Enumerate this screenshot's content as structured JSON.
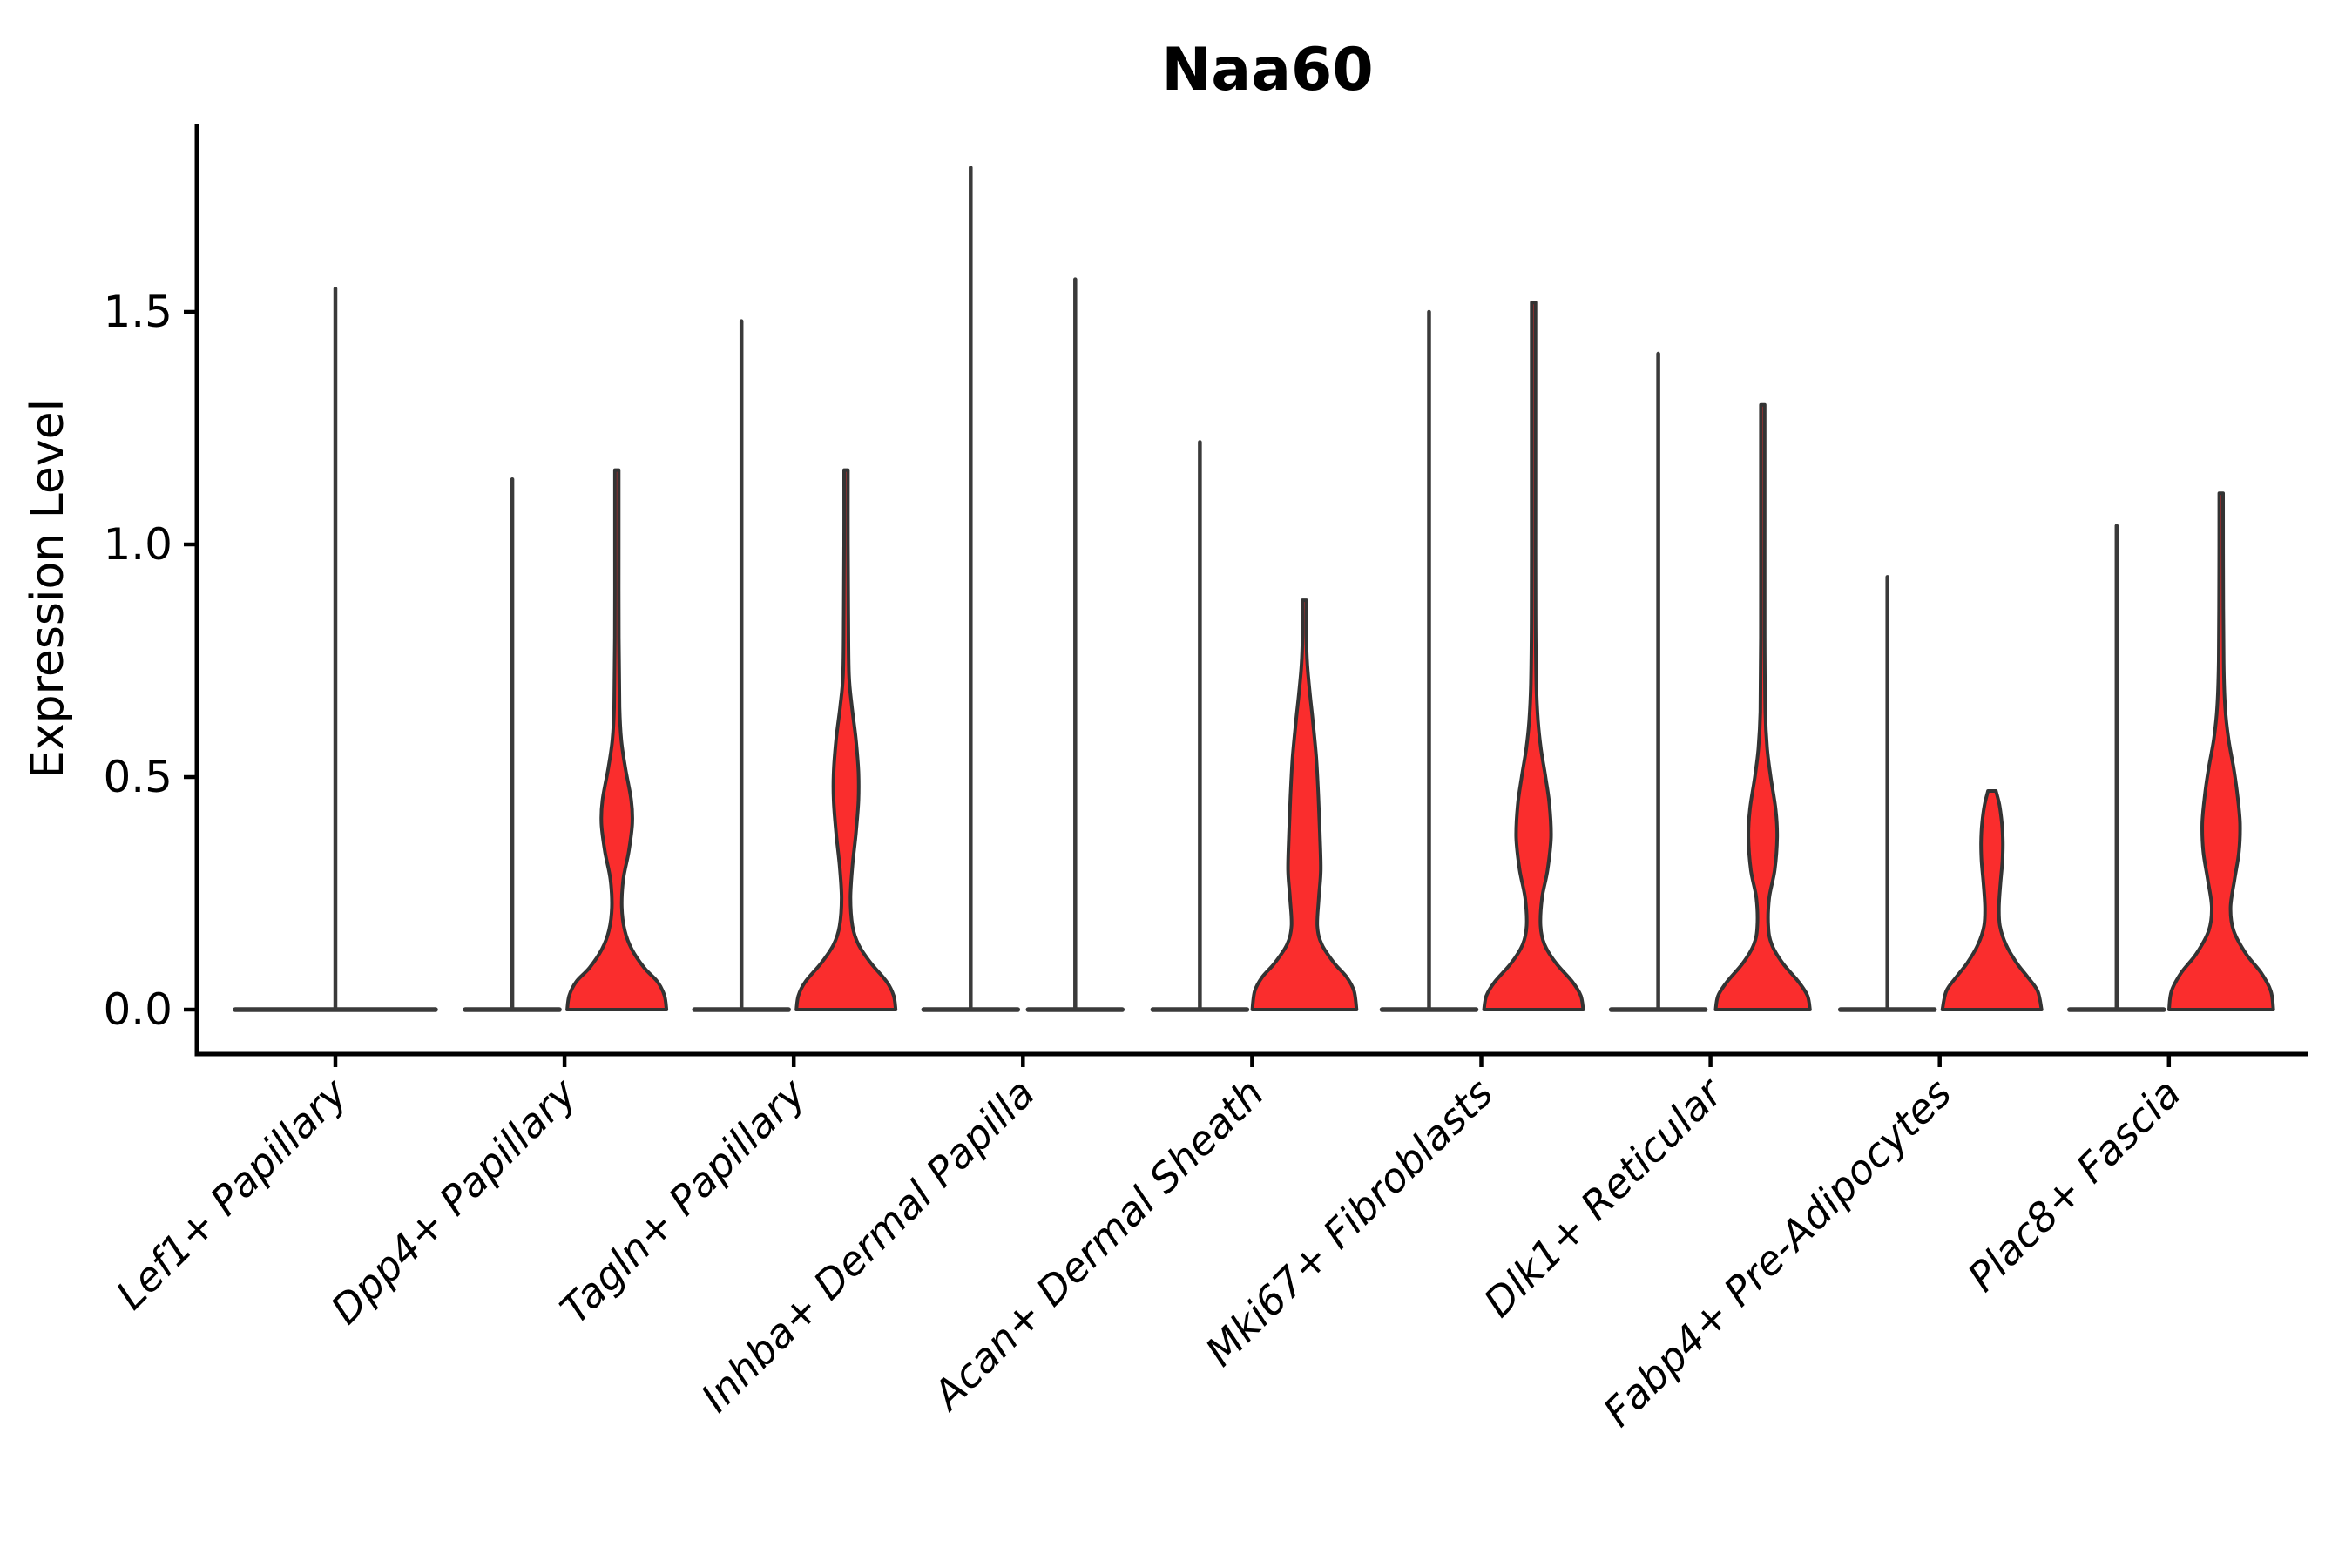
{
  "title": "Naa60",
  "axes": {
    "ylabel": "Expression Level",
    "ytick_labels": [
      "0.0",
      "0.5",
      "1.0",
      "1.5"
    ],
    "yticks": [
      0.0,
      0.5,
      1.0,
      1.5
    ],
    "ylim": [
      -0.09,
      1.9
    ],
    "grid": false,
    "legend": "none"
  },
  "colors": {
    "violin_fill": "#FA2D2D",
    "violin_outline": "#333333",
    "spike_line": "#3A3A3A",
    "axis": "#000000",
    "text": "#000000",
    "background": "#FFFFFF"
  },
  "chart_data": {
    "type": "violin",
    "title": "Naa60",
    "xlabel": "",
    "ylabel": "Expression Level",
    "categories": [
      "Lef1+ Papillary",
      "Dpp4+ Papillary",
      "Tagln+ Papillary",
      "Inhba+ Dermal Papilla",
      "Acan+ Dermal Sheath",
      "Mki67+ Fibroblasts",
      "Dlk1+ Reticular",
      "Fabp4+ Pre-Adipocytes",
      "Plac8+ Fascia"
    ],
    "series": [
      {
        "name": "violin-group-1",
        "style": "spike-line",
        "max_expression": [
          1.55,
          1.14,
          1.48,
          1.81,
          1.22,
          1.5,
          1.41,
          0.93,
          1.04
        ]
      },
      {
        "name": "violin-group-2",
        "style": "filled-red",
        "max_expression": [
          null,
          1.16,
          1.16,
          1.57,
          0.88,
          1.52,
          1.3,
          0.47,
          1.11
        ]
      }
    ],
    "violins": [
      {
        "category": "Lef1+ Papillary",
        "group": 1,
        "style": "line",
        "width": "full",
        "max": 1.55
      },
      {
        "category": "Dpp4+ Papillary",
        "group": 1,
        "style": "line",
        "max": 1.14
      },
      {
        "category": "Dpp4+ Papillary",
        "group": 2,
        "style": "filled",
        "max": 1.16,
        "profile": [
          [
            0,
            1.0
          ],
          [
            0.03,
            0.96
          ],
          [
            0.06,
            0.82
          ],
          [
            0.09,
            0.55
          ],
          [
            0.13,
            0.3
          ],
          [
            0.17,
            0.16
          ],
          [
            0.22,
            0.1
          ],
          [
            0.28,
            0.13
          ],
          [
            0.34,
            0.24
          ],
          [
            0.4,
            0.31
          ],
          [
            0.45,
            0.29
          ],
          [
            0.52,
            0.17
          ],
          [
            0.58,
            0.09
          ],
          [
            0.65,
            0.055
          ],
          [
            0.8,
            0.04
          ],
          [
            1.0,
            0.035
          ],
          [
            1.16,
            0.03
          ]
        ]
      },
      {
        "category": "Tagln+ Papillary",
        "group": 1,
        "style": "line",
        "max": 1.48
      },
      {
        "category": "Tagln+ Papillary",
        "group": 2,
        "style": "filled",
        "max": 1.16,
        "profile": [
          [
            0,
            1.0
          ],
          [
            0.03,
            0.96
          ],
          [
            0.06,
            0.82
          ],
          [
            0.1,
            0.5
          ],
          [
            0.14,
            0.25
          ],
          [
            0.18,
            0.13
          ],
          [
            0.24,
            0.09
          ],
          [
            0.31,
            0.13
          ],
          [
            0.38,
            0.2
          ],
          [
            0.45,
            0.25
          ],
          [
            0.51,
            0.25
          ],
          [
            0.58,
            0.2
          ],
          [
            0.65,
            0.12
          ],
          [
            0.72,
            0.06
          ],
          [
            0.85,
            0.045
          ],
          [
            1.0,
            0.038
          ],
          [
            1.16,
            0.03
          ]
        ]
      },
      {
        "category": "Inhba+ Dermal Papilla",
        "group": 1,
        "style": "line",
        "max": 1.81
      },
      {
        "category": "Inhba+ Dermal Papilla",
        "group": 2,
        "style": "line",
        "max": 1.57
      },
      {
        "category": "Acan+ Dermal Sheath",
        "group": 1,
        "style": "line",
        "max": 1.22
      },
      {
        "category": "Acan+ Dermal Sheath",
        "group": 2,
        "style": "filled",
        "max": 0.88,
        "profile": [
          [
            0,
            1.05
          ],
          [
            0.04,
            1.0
          ],
          [
            0.07,
            0.85
          ],
          [
            0.1,
            0.6
          ],
          [
            0.14,
            0.35
          ],
          [
            0.18,
            0.26
          ],
          [
            0.24,
            0.29
          ],
          [
            0.3,
            0.33
          ],
          [
            0.38,
            0.31
          ],
          [
            0.46,
            0.28
          ],
          [
            0.54,
            0.24
          ],
          [
            0.62,
            0.17
          ],
          [
            0.68,
            0.11
          ],
          [
            0.74,
            0.06
          ],
          [
            0.8,
            0.035
          ],
          [
            0.88,
            0.028
          ]
        ]
      },
      {
        "category": "Mki67+ Fibroblasts",
        "group": 1,
        "style": "line",
        "max": 1.5
      },
      {
        "category": "Mki67+ Fibroblasts",
        "group": 2,
        "style": "filled",
        "max": 1.52,
        "profile": [
          [
            0,
            1.0
          ],
          [
            0.03,
            0.95
          ],
          [
            0.06,
            0.78
          ],
          [
            0.1,
            0.45
          ],
          [
            0.14,
            0.22
          ],
          [
            0.18,
            0.14
          ],
          [
            0.24,
            0.17
          ],
          [
            0.3,
            0.28
          ],
          [
            0.37,
            0.35
          ],
          [
            0.44,
            0.32
          ],
          [
            0.5,
            0.24
          ],
          [
            0.56,
            0.15
          ],
          [
            0.62,
            0.09
          ],
          [
            0.7,
            0.055
          ],
          [
            0.85,
            0.04
          ],
          [
            1.1,
            0.032
          ],
          [
            1.3,
            0.028
          ],
          [
            1.52,
            0.025
          ]
        ]
      },
      {
        "category": "Dlk1+ Reticular",
        "group": 1,
        "style": "line",
        "max": 1.41
      },
      {
        "category": "Dlk1+ Reticular",
        "group": 2,
        "style": "filled",
        "max": 1.3,
        "profile": [
          [
            0,
            0.95
          ],
          [
            0.03,
            0.9
          ],
          [
            0.06,
            0.72
          ],
          [
            0.1,
            0.4
          ],
          [
            0.14,
            0.18
          ],
          [
            0.18,
            0.11
          ],
          [
            0.24,
            0.13
          ],
          [
            0.3,
            0.24
          ],
          [
            0.37,
            0.29
          ],
          [
            0.43,
            0.26
          ],
          [
            0.5,
            0.16
          ],
          [
            0.56,
            0.09
          ],
          [
            0.64,
            0.05
          ],
          [
            0.8,
            0.035
          ],
          [
            1.05,
            0.03
          ],
          [
            1.3,
            0.025
          ]
        ]
      },
      {
        "category": "Fabp4+ Pre-Adipocytes",
        "group": 1,
        "style": "line",
        "max": 0.93
      },
      {
        "category": "Fabp4+ Pre-Adipocytes",
        "group": 2,
        "style": "filled",
        "max": 0.47,
        "profile": [
          [
            0,
            1.0
          ],
          [
            0.04,
            0.92
          ],
          [
            0.07,
            0.72
          ],
          [
            0.1,
            0.5
          ],
          [
            0.14,
            0.28
          ],
          [
            0.18,
            0.16
          ],
          [
            0.22,
            0.14
          ],
          [
            0.27,
            0.17
          ],
          [
            0.32,
            0.21
          ],
          [
            0.36,
            0.22
          ],
          [
            0.4,
            0.2
          ],
          [
            0.44,
            0.15
          ],
          [
            0.47,
            0.08
          ]
        ]
      },
      {
        "category": "Plac8+ Fascia",
        "group": 1,
        "style": "line",
        "max": 1.04
      },
      {
        "category": "Plac8+ Fascia",
        "group": 2,
        "style": "filled",
        "max": 1.11,
        "profile": [
          [
            0,
            1.05
          ],
          [
            0.04,
            1.0
          ],
          [
            0.08,
            0.8
          ],
          [
            0.12,
            0.5
          ],
          [
            0.17,
            0.25
          ],
          [
            0.22,
            0.19
          ],
          [
            0.28,
            0.27
          ],
          [
            0.34,
            0.36
          ],
          [
            0.4,
            0.38
          ],
          [
            0.46,
            0.33
          ],
          [
            0.52,
            0.25
          ],
          [
            0.58,
            0.15
          ],
          [
            0.65,
            0.08
          ],
          [
            0.75,
            0.05
          ],
          [
            0.95,
            0.04
          ],
          [
            1.11,
            0.032
          ]
        ]
      }
    ]
  }
}
